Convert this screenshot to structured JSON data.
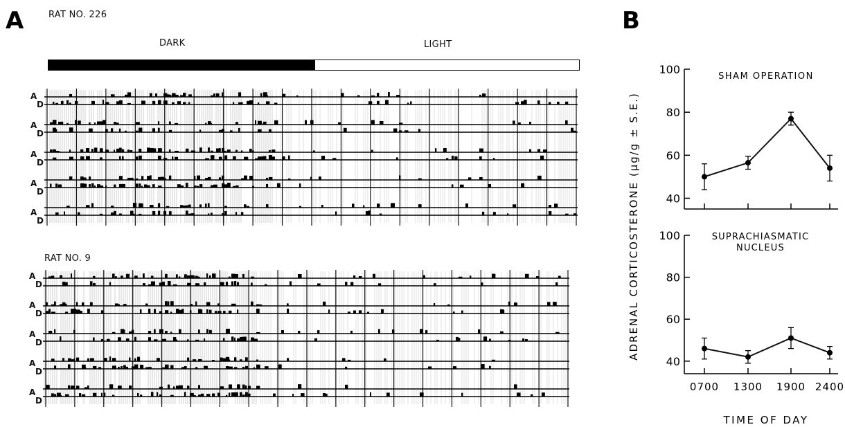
{
  "panel_a": {
    "letter": "A",
    "rat1_label": "RAT NO. 226",
    "dark_label": "DARK",
    "light_label": "LIGHT",
    "rat2_label": "RAT NO. 9",
    "channel_top": "A",
    "channel_bottom": "D"
  },
  "panel_b": {
    "letter": "B",
    "ylabel": "ADRENAL CORTICOSTERONE (μg/g ± S.E.)",
    "xlabel": "TIME OF DAY"
  },
  "chart_data": [
    {
      "type": "line",
      "title": "SHAM OPERATION",
      "categories": [
        "0700",
        "1300",
        "1900",
        "2400"
      ],
      "values": [
        50,
        56.5,
        77,
        54
      ],
      "error": [
        6,
        3,
        3,
        6
      ],
      "yticks": [
        40,
        60,
        80,
        100
      ],
      "ylim": [
        35,
        100
      ],
      "color": "#111111"
    },
    {
      "type": "line",
      "title": "SUPRACHIASMATIC NUCLEUS",
      "categories": [
        "0700",
        "1300",
        "1900",
        "2400"
      ],
      "values": [
        46,
        42,
        51,
        44
      ],
      "error": [
        5,
        3,
        5,
        3
      ],
      "yticks": [
        40,
        60,
        80,
        100
      ],
      "ylim": [
        34,
        100
      ],
      "color": "#111111"
    }
  ]
}
